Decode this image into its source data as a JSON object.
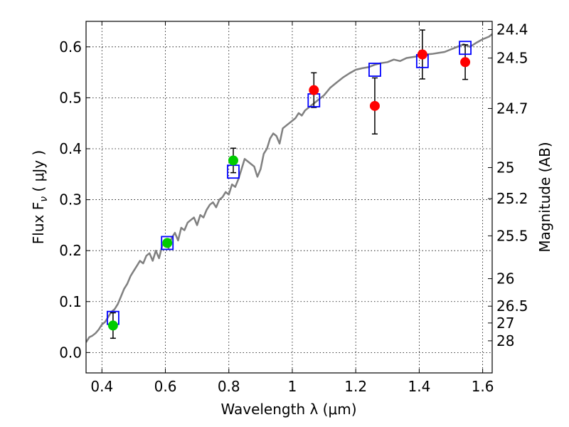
{
  "chart_data": {
    "type": "scatter",
    "xlabel": "Wavelength  λ (μm)",
    "ylabel_left": "Flux  F",
    "ylabel_left_sub": "ν",
    "ylabel_left_units": " ( μJy )",
    "ylabel_right": "Magnitude (AB)",
    "xlim": [
      0.35,
      1.63
    ],
    "ylim": [
      -0.04,
      0.65
    ],
    "grid": true,
    "x_ticks": [
      {
        "value": 0.4,
        "label": "0.4"
      },
      {
        "value": 0.6,
        "label": "0.6"
      },
      {
        "value": 0.8,
        "label": "0.8"
      },
      {
        "value": 1.0,
        "label": "1"
      },
      {
        "value": 1.2,
        "label": "1.2"
      },
      {
        "value": 1.4,
        "label": "1.4"
      },
      {
        "value": 1.6,
        "label": "1.6"
      }
    ],
    "y_ticks": [
      {
        "value": 0.0,
        "label": "0.0"
      },
      {
        "value": 0.1,
        "label": "0.1"
      },
      {
        "value": 0.2,
        "label": "0.2"
      },
      {
        "value": 0.3,
        "label": "0.3"
      },
      {
        "value": 0.4,
        "label": "0.4"
      },
      {
        "value": 0.5,
        "label": "0.5"
      },
      {
        "value": 0.6,
        "label": "0.6"
      }
    ],
    "mag_ticks": [
      {
        "flux": 0.634,
        "label": "24.4"
      },
      {
        "flux": 0.578,
        "label": "24.5"
      },
      {
        "flux": 0.479,
        "label": "24.7"
      },
      {
        "flux": 0.363,
        "label": "25"
      },
      {
        "flux": 0.302,
        "label": "25.2"
      },
      {
        "flux": 0.229,
        "label": "25.5"
      },
      {
        "flux": 0.145,
        "label": "26"
      },
      {
        "flux": 0.091,
        "label": "26.5"
      },
      {
        "flux": 0.058,
        "label": "27"
      },
      {
        "flux": 0.023,
        "label": "28"
      }
    ],
    "series": [
      {
        "name": "model_sed",
        "kind": "line",
        "color": "#808080",
        "x": [
          0.35,
          0.36,
          0.37,
          0.38,
          0.39,
          0.4,
          0.41,
          0.42,
          0.43,
          0.44,
          0.45,
          0.46,
          0.47,
          0.48,
          0.49,
          0.5,
          0.51,
          0.52,
          0.53,
          0.54,
          0.55,
          0.56,
          0.57,
          0.58,
          0.59,
          0.6,
          0.61,
          0.62,
          0.63,
          0.64,
          0.65,
          0.66,
          0.67,
          0.68,
          0.69,
          0.7,
          0.71,
          0.72,
          0.73,
          0.74,
          0.75,
          0.76,
          0.77,
          0.78,
          0.79,
          0.8,
          0.81,
          0.82,
          0.83,
          0.84,
          0.85,
          0.86,
          0.87,
          0.88,
          0.89,
          0.9,
          0.91,
          0.92,
          0.93,
          0.94,
          0.95,
          0.96,
          0.97,
          0.98,
          0.99,
          1.0,
          1.01,
          1.02,
          1.03,
          1.04,
          1.05,
          1.06,
          1.07,
          1.08,
          1.1,
          1.12,
          1.14,
          1.16,
          1.18,
          1.2,
          1.22,
          1.24,
          1.26,
          1.28,
          1.3,
          1.32,
          1.34,
          1.36,
          1.38,
          1.4,
          1.42,
          1.44,
          1.46,
          1.48,
          1.5,
          1.52,
          1.54,
          1.56,
          1.58,
          1.6,
          1.62,
          1.63
        ],
        "y": [
          0.02,
          0.03,
          0.033,
          0.038,
          0.045,
          0.055,
          0.06,
          0.07,
          0.08,
          0.085,
          0.095,
          0.11,
          0.125,
          0.135,
          0.15,
          0.16,
          0.17,
          0.18,
          0.175,
          0.19,
          0.195,
          0.18,
          0.2,
          0.185,
          0.21,
          0.215,
          0.205,
          0.225,
          0.235,
          0.22,
          0.245,
          0.24,
          0.255,
          0.26,
          0.265,
          0.25,
          0.27,
          0.265,
          0.28,
          0.29,
          0.295,
          0.285,
          0.3,
          0.305,
          0.315,
          0.31,
          0.33,
          0.325,
          0.34,
          0.36,
          0.38,
          0.375,
          0.37,
          0.365,
          0.345,
          0.36,
          0.39,
          0.4,
          0.42,
          0.43,
          0.425,
          0.41,
          0.44,
          0.445,
          0.45,
          0.455,
          0.46,
          0.47,
          0.465,
          0.475,
          0.48,
          0.485,
          0.49,
          0.495,
          0.505,
          0.52,
          0.53,
          0.54,
          0.548,
          0.555,
          0.558,
          0.56,
          0.565,
          0.568,
          0.57,
          0.575,
          0.572,
          0.578,
          0.58,
          0.582,
          0.585,
          0.586,
          0.588,
          0.59,
          0.595,
          0.6,
          0.605,
          0.6,
          0.608,
          0.615,
          0.62,
          0.625
        ]
      },
      {
        "name": "model_band_flux",
        "kind": "open-square",
        "color": "#0000ff",
        "x": [
          0.435,
          0.606,
          0.814,
          1.068,
          1.26,
          1.41,
          1.545
        ],
        "y": [
          0.068,
          0.215,
          0.355,
          0.495,
          0.555,
          0.572,
          0.598
        ]
      },
      {
        "name": "observed_optical",
        "kind": "filled-circle",
        "color": "#00cc00",
        "x": [
          0.435,
          0.606,
          0.814
        ],
        "y": [
          0.053,
          0.215,
          0.377
        ],
        "yerr": [
          0.025,
          0.005,
          0.024
        ]
      },
      {
        "name": "observed_nir",
        "kind": "filled-circle",
        "color": "#ff0000",
        "x": [
          1.068,
          1.26,
          1.41,
          1.545
        ],
        "y": [
          0.515,
          0.484,
          0.585,
          0.57
        ],
        "yerr": [
          0.034,
          0.055,
          0.048,
          0.034
        ]
      }
    ]
  }
}
